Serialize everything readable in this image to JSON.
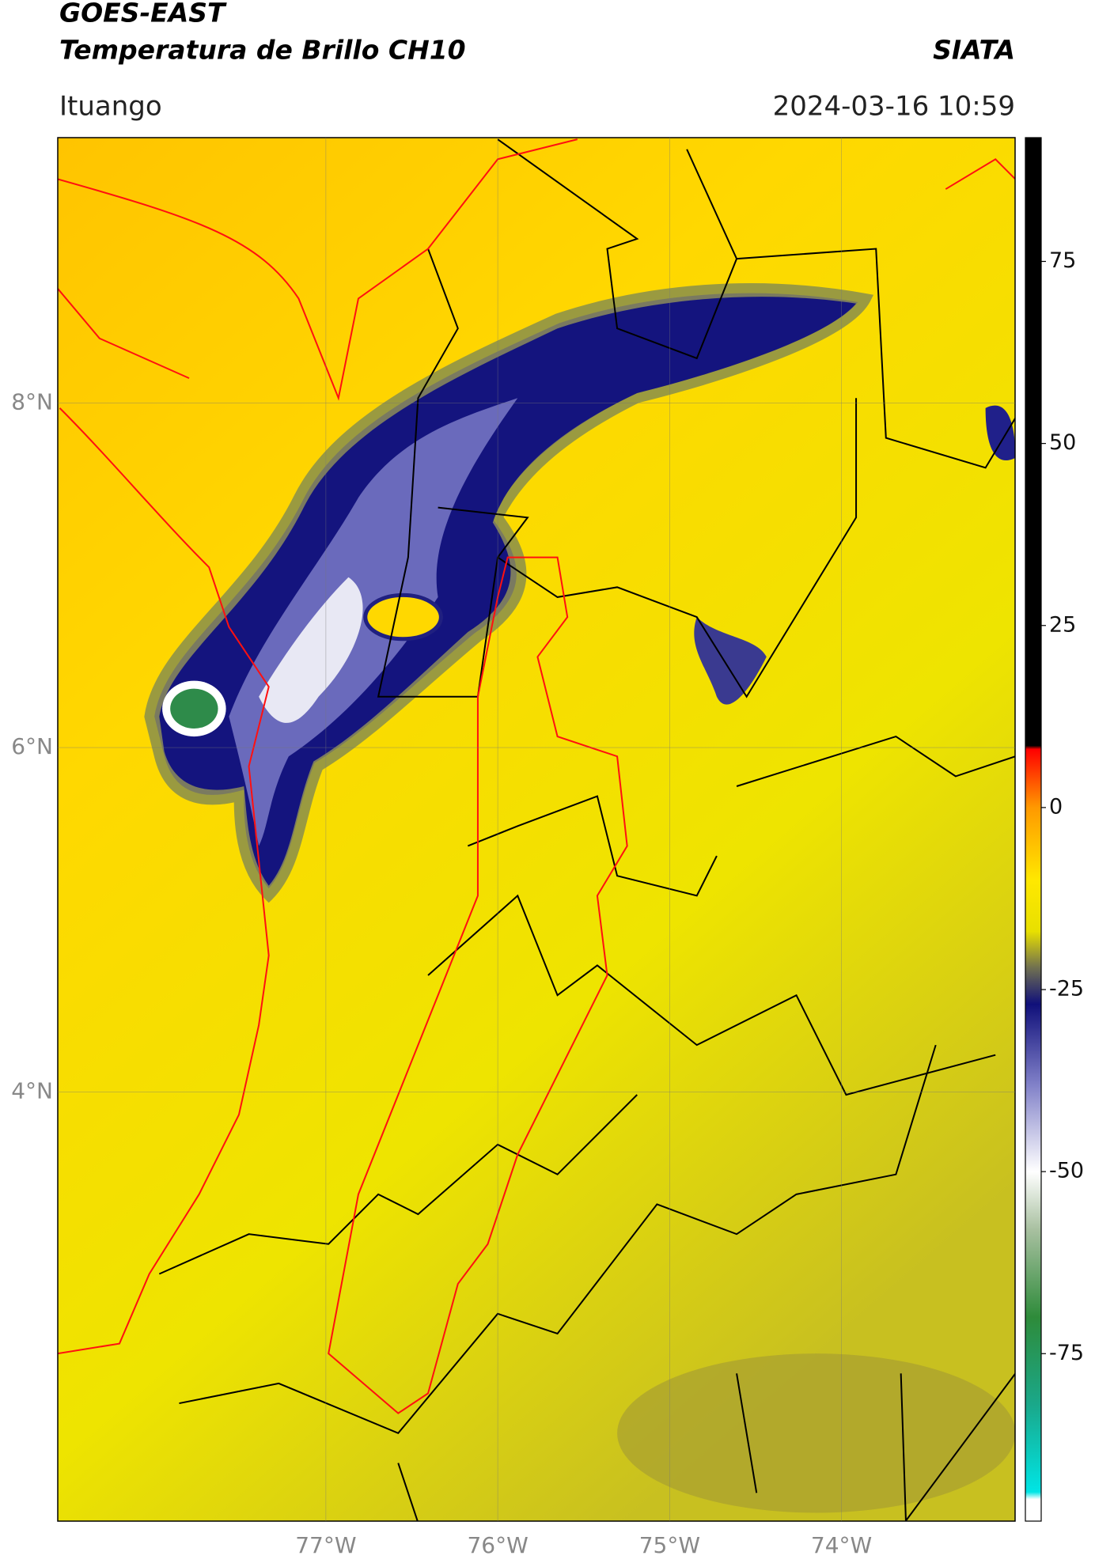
{
  "header": {
    "title": "GOES-EAST",
    "subtitle": "Temperatura de Brillo CH10",
    "brand": "SIATA",
    "location": "Ituango",
    "datetime": "2024-03-16 10:59"
  },
  "chart_data": {
    "type": "map",
    "xlim": [
      -78.56,
      -72.99
    ],
    "ylim": [
      1.51,
      9.54
    ],
    "xticks": [
      {
        "value": -77,
        "label": "77°W"
      },
      {
        "value": -76,
        "label": "76°W"
      },
      {
        "value": -75,
        "label": "75°W"
      },
      {
        "value": -74,
        "label": "74°W"
      }
    ],
    "yticks": [
      {
        "value": 4,
        "label": "4°N"
      },
      {
        "value": 6,
        "label": "6°N"
      },
      {
        "value": 8,
        "label": "8°N"
      }
    ],
    "grid": true,
    "colorbar": {
      "lim": [
        -98,
        92
      ],
      "ticks": [
        -75,
        -50,
        -25,
        0,
        25,
        50,
        75
      ],
      "colors": [
        {
          "value": -98,
          "color": "#ffffff"
        },
        {
          "value": -95,
          "color": "#ffffff"
        },
        {
          "value": -94,
          "color": "#00e5e5"
        },
        {
          "value": -82,
          "color": "#1aa88a"
        },
        {
          "value": -70,
          "color": "#2e8b3a"
        },
        {
          "value": -58,
          "color": "#a8c0a0"
        },
        {
          "value": -50,
          "color": "#ffffff"
        },
        {
          "value": -38,
          "color": "#8080c8"
        },
        {
          "value": -27,
          "color": "#10107a"
        },
        {
          "value": -22,
          "color": "#707050"
        },
        {
          "value": -17,
          "color": "#e8e000"
        },
        {
          "value": -10,
          "color": "#ffe800"
        },
        {
          "value": 0,
          "color": "#ff9900"
        },
        {
          "value": 8,
          "color": "#ff0000"
        },
        {
          "value": 8.5,
          "color": "#000000"
        },
        {
          "value": 92,
          "color": "#000000"
        }
      ]
    }
  }
}
